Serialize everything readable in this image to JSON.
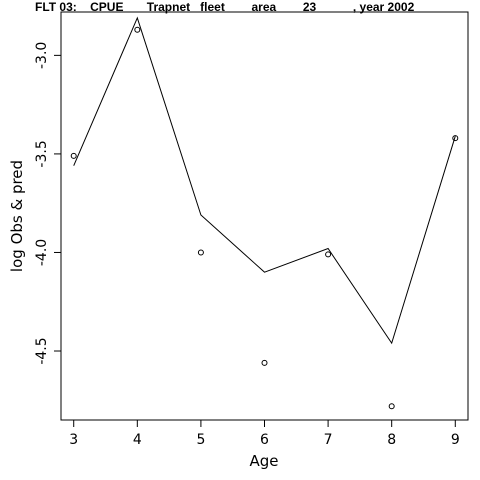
{
  "chart_data": {
    "type": "line",
    "title": "FLT 03:    CPUE       Trapnet   fleet        area        23           , year 2002",
    "xlabel": "Age",
    "ylabel": "log Obs & pred",
    "x_ticks": [
      3,
      4,
      5,
      6,
      7,
      8,
      9
    ],
    "y_ticks": [
      -3.0,
      -3.5,
      -4.0,
      -4.5
    ],
    "y_tick_labels": [
      "-3.0",
      "-3.5",
      "-4.0",
      "-4.5"
    ],
    "xlim": [
      2.8,
      9.2
    ],
    "ylim": [
      -4.85,
      -2.78
    ],
    "series": [
      {
        "style": "line",
        "x": [
          3,
          4,
          5,
          6,
          7,
          8,
          9
        ],
        "values": [
          -3.56,
          -2.81,
          -3.81,
          -4.1,
          -3.98,
          -4.46,
          -3.41
        ]
      },
      {
        "style": "points",
        "x": [
          3,
          4,
          5,
          6,
          7,
          8,
          9
        ],
        "values": [
          -3.51,
          -2.87,
          -4.0,
          -4.56,
          -4.01,
          -4.78,
          -3.42
        ]
      }
    ]
  }
}
